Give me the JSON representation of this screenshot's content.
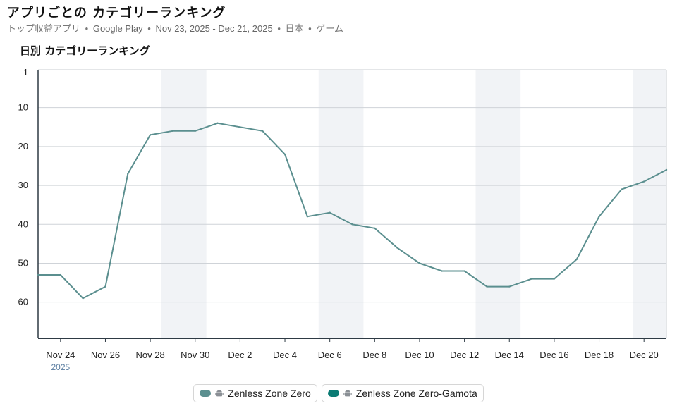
{
  "header": {
    "title": "アプリごとの カテゴリーランキング",
    "subtitle": {
      "list": "トップ収益アプリ",
      "store": "Google Play",
      "date_range": "Nov 23, 2025 - Dec 21, 2025",
      "country": "日本",
      "category": "ゲーム",
      "separator": "•"
    }
  },
  "chart_data": {
    "type": "line",
    "title": "日別 カテゴリーランキング",
    "xlabel": "",
    "ylabel": "",
    "y_inverted": true,
    "ylim": [
      1,
      70
    ],
    "y_ticks": [
      1,
      10,
      20,
      30,
      40,
      50,
      60
    ],
    "x_tick_labels": [
      "Nov 24",
      "Nov 26",
      "Nov 28",
      "Nov 30",
      "Dec 2",
      "Dec 4",
      "Dec 6",
      "Dec 8",
      "Dec 10",
      "Dec 12",
      "Dec 14",
      "Dec 16",
      "Dec 18",
      "Dec 20"
    ],
    "x_year_label": "2025",
    "weekend_shading": [
      [
        "Nov 29",
        "Nov 30"
      ],
      [
        "Dec 6",
        "Dec 7"
      ],
      [
        "Dec 13",
        "Dec 14"
      ],
      [
        "Dec 20",
        "Dec 21"
      ]
    ],
    "grid": true,
    "x": [
      "Nov 23",
      "Nov 24",
      "Nov 25",
      "Nov 26",
      "Nov 27",
      "Nov 28",
      "Nov 29",
      "Nov 30",
      "Dec 1",
      "Dec 2",
      "Dec 3",
      "Dec 4",
      "Dec 5",
      "Dec 6",
      "Dec 7",
      "Dec 8",
      "Dec 9",
      "Dec 10",
      "Dec 11",
      "Dec 12",
      "Dec 13",
      "Dec 14",
      "Dec 15",
      "Dec 16",
      "Dec 17",
      "Dec 18",
      "Dec 19",
      "Dec 20",
      "Dec 21"
    ],
    "series": [
      {
        "name": "Zenless Zone Zero",
        "color": "#5b8f8f",
        "values": [
          53,
          53,
          59,
          56,
          27,
          17,
          16,
          16,
          14,
          15,
          16,
          22,
          38,
          37,
          40,
          41,
          46,
          50,
          52,
          52,
          56,
          56,
          54,
          54,
          49,
          38,
          31,
          29,
          26
        ]
      }
    ],
    "legend": {
      "placement": "bottom-center",
      "items": [
        {
          "name": "Zenless Zone Zero",
          "color": "#5b8f8f",
          "icon": "android-icon"
        },
        {
          "name": "Zenless Zone Zero-Gamota",
          "color": "#0b7b74",
          "icon": "android-icon"
        }
      ]
    }
  }
}
